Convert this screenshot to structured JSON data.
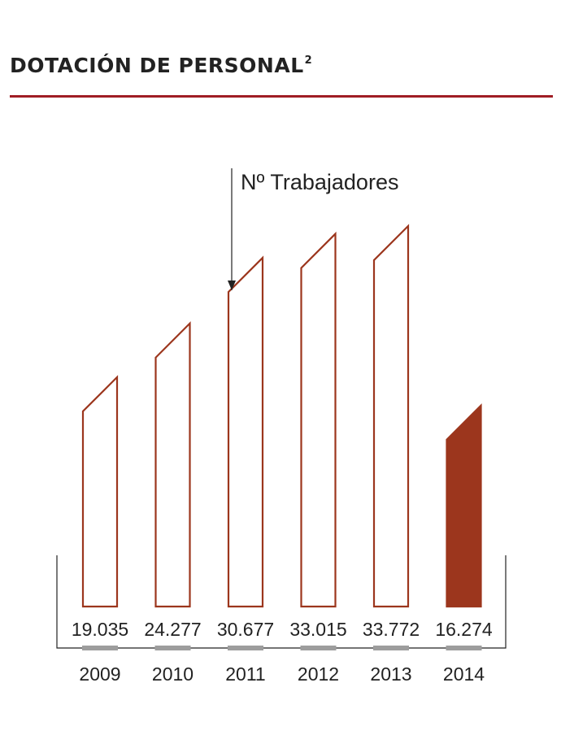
{
  "header": {
    "title": "DOTACIÓN DE PERSONAL",
    "title_superscript": "2"
  },
  "colors": {
    "accent_rule": "#a01d24",
    "bar_outline": "#9c361d",
    "bar_highlight_fill": "#9c361d",
    "year_marker": "#9d9d9d",
    "text": "#222222"
  },
  "chart_data": {
    "type": "bar",
    "categories": [
      "2009",
      "2010",
      "2011",
      "2012",
      "2013",
      "2014"
    ],
    "values": [
      19035,
      24277,
      30677,
      33015,
      33772,
      16274
    ],
    "value_labels": [
      "19.035",
      "24.277",
      "30.677",
      "33.015",
      "33.772",
      "16.274"
    ],
    "annotation": "Nº Trabajadores",
    "highlighted_category": "2014",
    "ylim": [
      0,
      33772
    ],
    "grid": false,
    "legend": "none"
  }
}
